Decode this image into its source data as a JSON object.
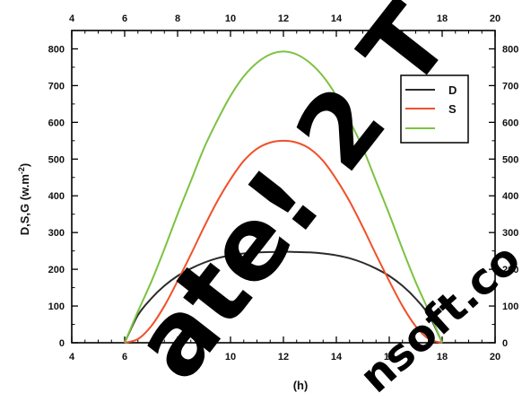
{
  "chart_data": {
    "type": "line",
    "xlabel": "(h)",
    "ylabel": "D,S,G (w.m",
    "ylabel_sup": "-2",
    "ylabel_close": ")",
    "xlim": [
      4,
      20
    ],
    "ylim": [
      0,
      850
    ],
    "x_ticks": [
      "4",
      "6",
      "8",
      "10",
      "12",
      "14",
      "16",
      "18",
      "20"
    ],
    "y_ticks": [
      "0",
      "100",
      "200",
      "300",
      "400",
      "500",
      "600",
      "700",
      "800"
    ],
    "grid": false,
    "legend_position": "top-right",
    "series": [
      {
        "name": "D",
        "color": "#2b2b2b",
        "x": [
          6,
          6.5,
          7,
          7.5,
          8,
          8.5,
          9,
          9.5,
          10,
          10.5,
          11,
          11.5,
          12,
          12.5,
          13,
          13.5,
          14,
          14.5,
          15,
          15.5,
          16,
          16.5,
          17,
          17.5,
          18
        ],
        "y": [
          0,
          75,
          120,
          155,
          182,
          202,
          218,
          230,
          238,
          243,
          246,
          247,
          248,
          247,
          246,
          243,
          238,
          230,
          218,
          202,
          182,
          155,
          120,
          75,
          0
        ]
      },
      {
        "name": "S",
        "color": "#f0502a",
        "x": [
          6,
          6.5,
          7,
          7.5,
          8,
          8.5,
          9,
          9.5,
          10,
          10.5,
          11,
          11.5,
          12,
          12.5,
          13,
          13.5,
          14,
          14.5,
          15,
          15.5,
          16,
          16.5,
          17,
          17.5,
          18
        ],
        "y": [
          0,
          10,
          45,
          100,
          168,
          240,
          315,
          385,
          445,
          495,
          528,
          545,
          550,
          545,
          528,
          495,
          445,
          385,
          315,
          240,
          168,
          100,
          45,
          10,
          0
        ]
      },
      {
        "name": "",
        "color": "#7cc242",
        "x": [
          6,
          6.5,
          7,
          7.5,
          8,
          8.5,
          9,
          9.5,
          10,
          10.5,
          11,
          11.5,
          12,
          12.5,
          13,
          13.5,
          14,
          14.5,
          15,
          15.5,
          16,
          16.5,
          17,
          17.5,
          18
        ],
        "y": [
          0,
          85,
          165,
          255,
          350,
          440,
          530,
          605,
          672,
          725,
          762,
          785,
          793,
          785,
          762,
          725,
          672,
          605,
          530,
          440,
          350,
          255,
          165,
          85,
          0
        ]
      }
    ]
  },
  "watermark": {
    "large_text": "ate! 2 T",
    "small_text": "nsoft.co"
  }
}
